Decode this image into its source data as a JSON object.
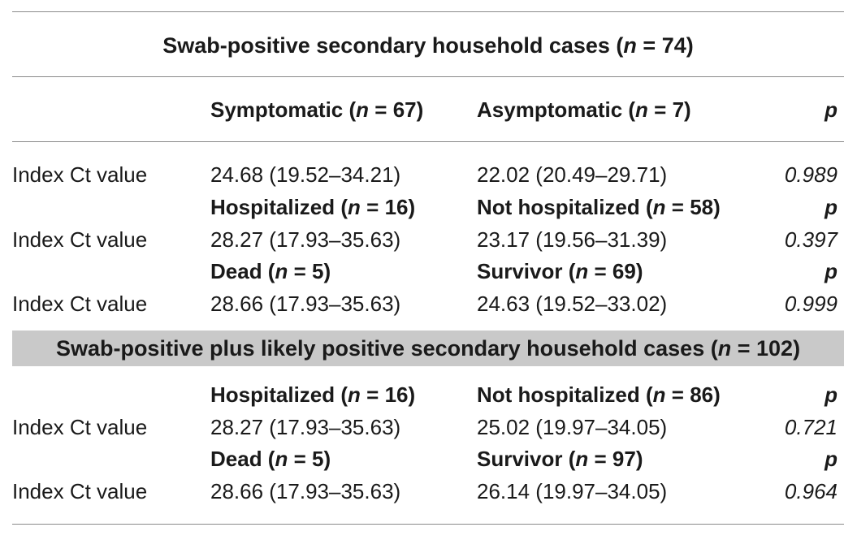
{
  "section1": {
    "title": "Swab-positive secondary household cases",
    "title_n": "74",
    "header": {
      "col1": "Symptomatic",
      "col1_n": "67",
      "col2": "Asymptomatic",
      "col2_n": "7",
      "p": "p"
    },
    "rows": [
      {
        "label": "Index Ct value",
        "col1": "24.68 (19.52–34.21)",
        "col2": "22.02 (20.49–29.71)",
        "p": "0.989"
      }
    ],
    "sub1": {
      "col1": "Hospitalized",
      "col1_n": "16",
      "col2": "Not hospitalized",
      "col2_n": "58",
      "p": "p",
      "row": {
        "label": "Index Ct value",
        "col1": "28.27 (17.93–35.63)",
        "col2": "23.17 (19.56–31.39)",
        "p": "0.397"
      }
    },
    "sub2": {
      "col1": "Dead",
      "col1_n": "5",
      "col2": "Survivor",
      "col2_n": "69",
      "p": "p",
      "row": {
        "label": "Index Ct value",
        "col1": "28.66 (17.93–35.63)",
        "col2": "24.63 (19.52–33.02)",
        "p": "0.999"
      }
    }
  },
  "section2": {
    "title": "Swab-positive plus likely positive secondary household cases",
    "title_n": "102",
    "sub1": {
      "col1": "Hospitalized",
      "col1_n": "16",
      "col2": "Not hospitalized",
      "col2_n": "86",
      "p": "p",
      "row": {
        "label": "Index Ct value",
        "col1": "28.27 (17.93–35.63)",
        "col2": "25.02 (19.97–34.05)",
        "p": "0.721"
      }
    },
    "sub2": {
      "col1": "Dead",
      "col1_n": "5",
      "col2": "Survivor",
      "col2_n": "97",
      "p": "p",
      "row": {
        "label": "Index Ct value",
        "col1": "28.66 (17.93–35.63)",
        "col2": "26.14 (19.97–34.05)",
        "p": "0.964"
      }
    }
  },
  "n_symbol": "n"
}
